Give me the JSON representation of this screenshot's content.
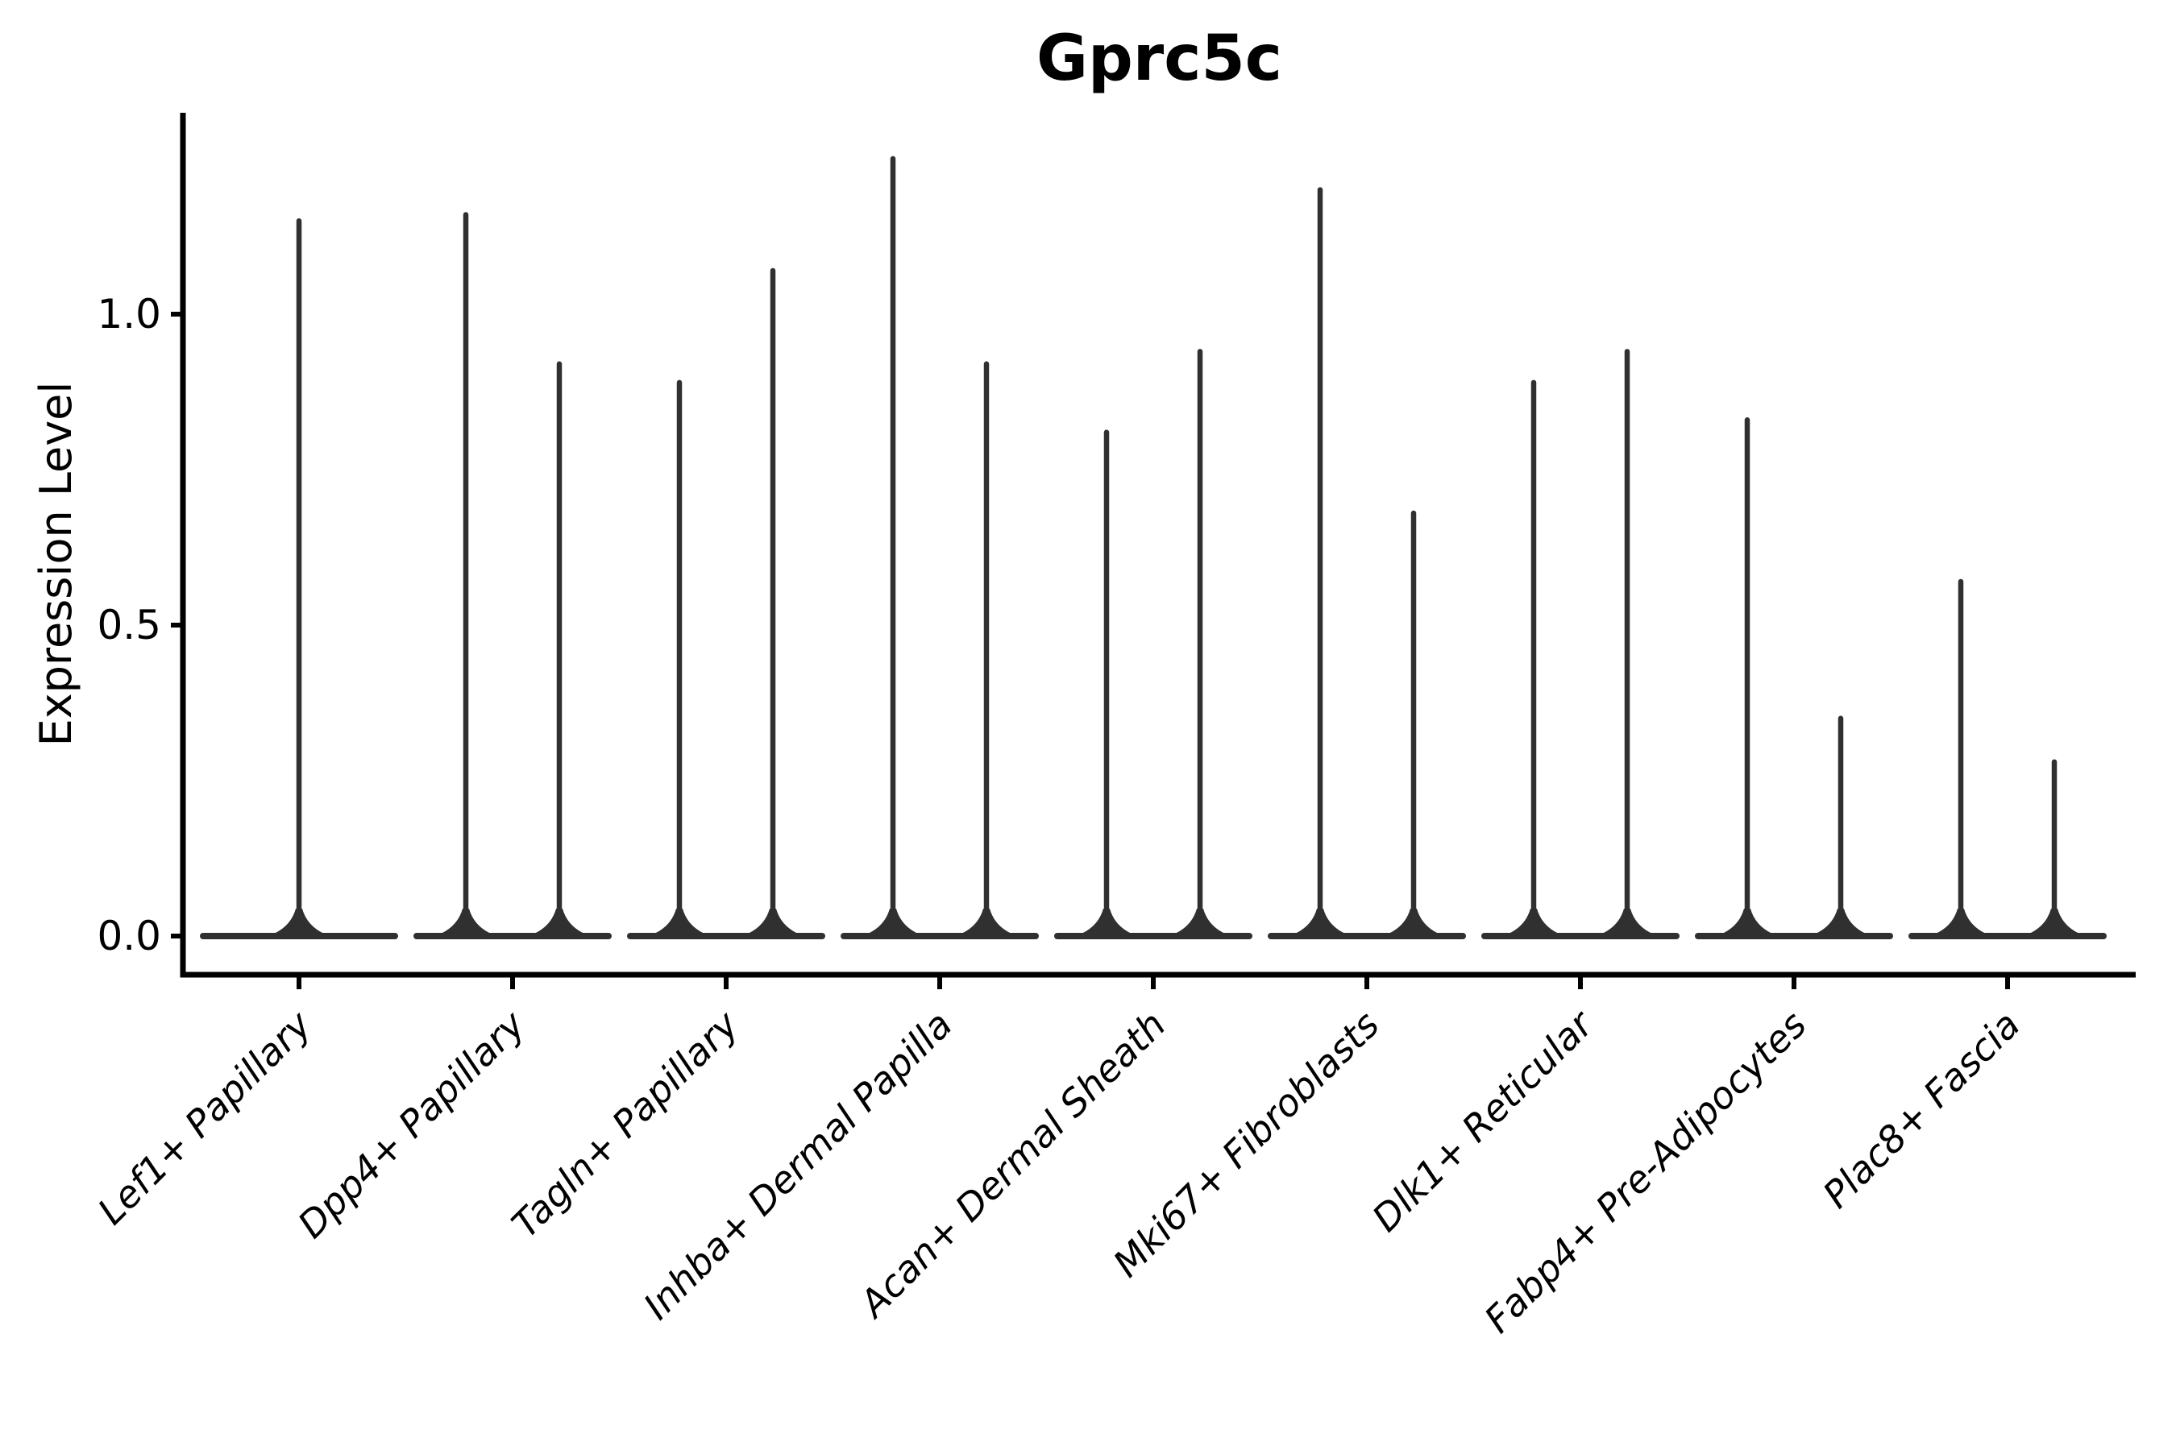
{
  "chart_data": {
    "type": "violin",
    "title": "Gprc5c",
    "xlabel": "",
    "ylabel": "Expression Level",
    "ytick_labels": [
      "0.0",
      "0.5",
      "1.0"
    ],
    "ytick_values": [
      0.0,
      0.5,
      1.0
    ],
    "ylim": [
      -0.06,
      1.32
    ],
    "grid": false,
    "legend": "none",
    "categories": [
      "Lef1+ Papillary",
      "Dpp4+ Papillary",
      "Tagln+ Papillary",
      "Inhba+ Dermal Papilla",
      "Acan+ Dermal Sheath",
      "Mki67+ Fibroblasts",
      "Dlk1+ Reticular",
      "Fabp4+ Pre-Adipocytes",
      "Plac8+ Fascia"
    ],
    "groups": [
      {
        "category": "Lef1+ Papillary",
        "violin_max_values": [
          1.15
        ]
      },
      {
        "category": "Dpp4+ Papillary",
        "violin_max_values": [
          1.16,
          0.92
        ]
      },
      {
        "category": "Tagln+ Papillary",
        "violin_max_values": [
          0.89,
          1.07
        ]
      },
      {
        "category": "Inhba+ Dermal Papilla",
        "violin_max_values": [
          1.25,
          0.92
        ]
      },
      {
        "category": "Acan+ Dermal Sheath",
        "violin_max_values": [
          0.81,
          0.94
        ]
      },
      {
        "category": "Mki67+ Fibroblasts",
        "violin_max_values": [
          1.2,
          0.68
        ]
      },
      {
        "category": "Dlk1+ Reticular",
        "violin_max_values": [
          0.89,
          0.94
        ]
      },
      {
        "category": "Fabp4+ Pre-Adipocytes",
        "violin_max_values": [
          0.83,
          0.35
        ]
      },
      {
        "category": "Plac8+ Fascia",
        "violin_max_values": [
          0.57,
          0.28
        ]
      }
    ],
    "violin_base_value": 0.0,
    "style": {
      "violin_color": "#303030",
      "axis_color": "#000000",
      "text_color": "#000000",
      "background": "#ffffff",
      "xtick_label_style": "italic",
      "xtick_label_rotation_deg": 45
    }
  }
}
